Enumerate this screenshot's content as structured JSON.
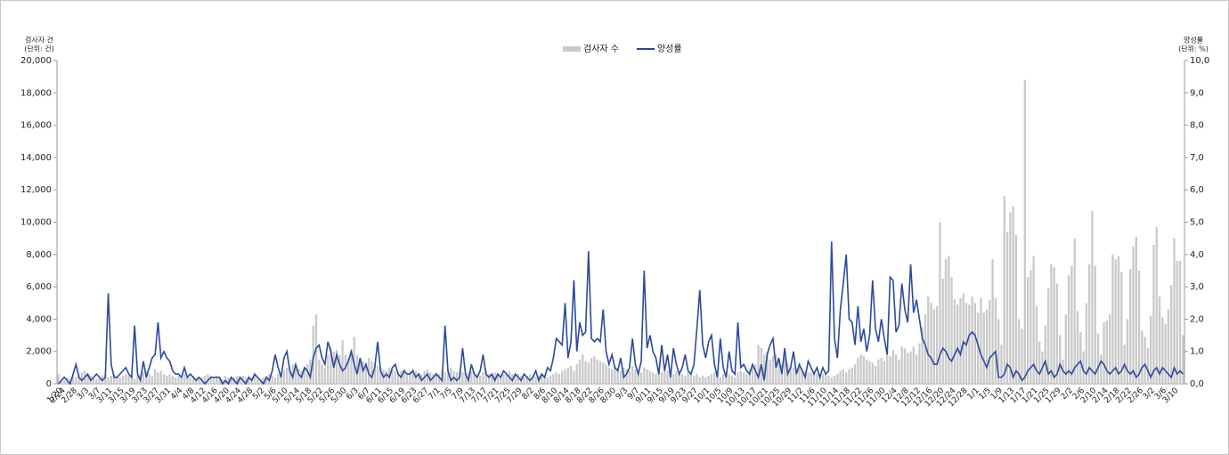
{
  "chart_data": {
    "type": "combo",
    "y_title": "검사자 건",
    "y_unit": "(단위: 건)",
    "y2_title": "양성률",
    "y2_unit": "(단위: %)",
    "categories": [
      "1/20",
      "2/24",
      null,
      null,
      null,
      "2/28",
      null,
      null,
      null,
      "3/3",
      null,
      null,
      null,
      "3/7",
      null,
      null,
      null,
      "3/11",
      null,
      null,
      null,
      "3/15",
      null,
      null,
      null,
      "3/19",
      null,
      null,
      null,
      "3/23",
      null,
      null,
      null,
      "3/27",
      null,
      null,
      null,
      "3/31",
      null,
      null,
      null,
      "4/4",
      null,
      null,
      null,
      "4/8",
      null,
      null,
      null,
      "4/12",
      null,
      null,
      null,
      "4/16",
      null,
      null,
      null,
      "4/20",
      null,
      null,
      null,
      "4/24",
      null,
      null,
      null,
      "4/28",
      null,
      null,
      null,
      "5/2",
      null,
      null,
      null,
      "5/6",
      null,
      null,
      null,
      "5/10",
      null,
      null,
      null,
      "5/14",
      null,
      null,
      null,
      "5/18",
      null,
      null,
      null,
      "5/22",
      null,
      null,
      null,
      "5/26",
      null,
      null,
      null,
      "5/30",
      null,
      null,
      null,
      "6/3",
      null,
      null,
      null,
      "6/7",
      null,
      null,
      null,
      "6/11",
      null,
      null,
      null,
      "6/15",
      null,
      null,
      null,
      "6/19",
      null,
      null,
      null,
      "6/23",
      null,
      null,
      null,
      "6/27",
      null,
      null,
      null,
      "7/1",
      null,
      null,
      null,
      "7/5",
      null,
      null,
      null,
      "7/9",
      null,
      null,
      null,
      "7/13",
      null,
      null,
      null,
      "7/17",
      null,
      null,
      null,
      "7/21",
      null,
      null,
      null,
      "7/25",
      null,
      null,
      null,
      "7/29",
      null,
      null,
      null,
      "8/2",
      null,
      null,
      null,
      "8/6",
      null,
      null,
      null,
      "8/10",
      null,
      null,
      null,
      "8/14",
      null,
      null,
      null,
      "8/18",
      null,
      null,
      null,
      "8/22",
      null,
      null,
      null,
      "8/26",
      null,
      null,
      null,
      "8/30",
      null,
      null,
      null,
      "9/3",
      null,
      null,
      null,
      "9/7",
      null,
      null,
      null,
      "9/11",
      null,
      null,
      null,
      "9/15",
      null,
      null,
      null,
      "9/19",
      null,
      null,
      null,
      "9/23",
      null,
      null,
      null,
      "9/27",
      null,
      null,
      null,
      "10/1",
      null,
      null,
      null,
      "10/5",
      null,
      null,
      null,
      "10/9",
      null,
      null,
      null,
      "10/13",
      null,
      null,
      null,
      "10/17",
      null,
      null,
      null,
      "10/21",
      null,
      null,
      null,
      "10/25",
      null,
      null,
      null,
      "10/29",
      null,
      null,
      null,
      "11/2",
      null,
      null,
      null,
      "11/6",
      null,
      null,
      null,
      "11/10",
      null,
      null,
      null,
      "11/14",
      null,
      null,
      null,
      "11/18",
      null,
      null,
      null,
      "11/22",
      null,
      null,
      null,
      "11/26",
      null,
      null,
      null,
      "11/30",
      null,
      null,
      null,
      "12/4",
      null,
      null,
      null,
      "12/8",
      null,
      null,
      null,
      "12/12",
      null,
      null,
      null,
      "12/16",
      null,
      null,
      null,
      "12/20",
      null,
      null,
      null,
      "12/24",
      null,
      null,
      null,
      "12/28",
      null,
      null,
      null,
      "1/1",
      null,
      null,
      null,
      "1/5",
      null,
      null,
      null,
      "1/9",
      null,
      null,
      null,
      "1/13",
      null,
      null,
      null,
      "1/17",
      null,
      null,
      null,
      "1/21",
      null,
      null,
      null,
      "1/25",
      null,
      null,
      null,
      "1/29",
      null,
      null,
      null,
      "2/2",
      null,
      null,
      null,
      "2/6",
      null,
      null,
      null,
      "2/10",
      null,
      null,
      null,
      "2/14",
      null,
      null,
      null,
      "2/18",
      null,
      null,
      null,
      "2/22",
      null,
      null,
      null,
      "2/26",
      null,
      null,
      null,
      "3/2",
      null,
      null,
      null,
      "3/6",
      null,
      null,
      null,
      "3/10",
      null,
      null,
      null
    ],
    "series": [
      {
        "name": "검사자 수",
        "type": "bar",
        "color": "#c9c9c9",
        "values": [
          600,
          300,
          200,
          400,
          300,
          500,
          400,
          600,
          700,
          800,
          600,
          500,
          400,
          300,
          400,
          500,
          600,
          400,
          500,
          600,
          500,
          400,
          500,
          600,
          500,
          400,
          300,
          500,
          600,
          700,
          800,
          600,
          500,
          900,
          700,
          800,
          600,
          500,
          600,
          500,
          400,
          500,
          400,
          600,
          500,
          400,
          500,
          400,
          300,
          400,
          500,
          600,
          500,
          400,
          500,
          400,
          300,
          500,
          400,
          300,
          400,
          500,
          400,
          500,
          400,
          300,
          400,
          500,
          400,
          300,
          400,
          500,
          600,
          500,
          400,
          600,
          700,
          800,
          1000,
          900,
          1200,
          1100,
          900,
          800,
          1000,
          1200,
          1500,
          3600,
          4300,
          1500,
          1200,
          1000,
          1800,
          2300,
          2000,
          2100,
          1800,
          2700,
          1800,
          1600,
          2100,
          2900,
          1800,
          1500,
          1400,
          1300,
          1600,
          1400,
          1200,
          1100,
          1000,
          900,
          800,
          1000,
          900,
          800,
          700,
          800,
          900,
          700,
          800,
          900,
          800,
          700,
          600,
          800,
          900,
          700,
          600,
          700,
          600,
          800,
          700,
          900,
          1000,
          800,
          700,
          800,
          700,
          600,
          700,
          800,
          700,
          600,
          500,
          700,
          800,
          600,
          500,
          700,
          600,
          500,
          600,
          700,
          800,
          600,
          500,
          600,
          500,
          400,
          500,
          600,
          500,
          400,
          500,
          600,
          500,
          400,
          500,
          600,
          700,
          600,
          800,
          900,
          1000,
          1100,
          800,
          1200,
          1500,
          1800,
          1400,
          1300,
          1600,
          1700,
          1500,
          1400,
          1300,
          1200,
          1000,
          900,
          1100,
          1000,
          800,
          1000,
          900,
          800,
          1100,
          900,
          800,
          700,
          1000,
          900,
          800,
          700,
          600,
          800,
          700,
          900,
          800,
          700,
          600,
          800,
          700,
          600,
          500,
          700,
          600,
          500,
          600,
          400,
          500,
          400,
          500,
          600,
          700,
          500,
          400,
          600,
          500,
          600,
          500,
          400,
          700,
          800,
          700,
          600,
          900,
          1000,
          1200,
          2400,
          2200,
          1800,
          2000,
          1500,
          1700,
          1800,
          1500,
          1200,
          1600,
          1300,
          1100,
          1000,
          900,
          1100,
          900,
          800,
          700,
          700,
          800,
          600,
          500,
          600,
          700,
          500,
          400,
          500,
          600,
          800,
          900,
          700,
          900,
          1000,
          1200,
          1600,
          1800,
          1700,
          1500,
          1400,
          1300,
          1100,
          1500,
          1600,
          1400,
          1800,
          1700,
          2100,
          1800,
          1500,
          2300,
          2200,
          1900,
          2000,
          2300,
          1800,
          2500,
          3500,
          4300,
          5400,
          5000,
          4600,
          4800,
          10000,
          6500,
          7700,
          7900,
          6600,
          5200,
          4900,
          5300,
          5600,
          5000,
          4900,
          5400,
          5000,
          4400,
          5300,
          4400,
          4600,
          5200,
          7700,
          5300,
          4000,
          2400,
          11600,
          9400,
          10600,
          11000,
          9200,
          4000,
          3400,
          18800,
          6600,
          7000,
          7900,
          4800,
          2600,
          2000,
          3600,
          5900,
          7400,
          7200,
          6200,
          3000,
          1500,
          4300,
          6700,
          7300,
          9000,
          4500,
          3200,
          2000,
          5000,
          7400,
          10700,
          7300,
          3100,
          1800,
          3800,
          3900,
          4300,
          8000,
          7700,
          7900,
          6900,
          2400,
          4000,
          7100,
          8500,
          9100,
          7000,
          3300,
          2900,
          2200,
          4200,
          8600,
          9700,
          5400,
          4100,
          3700,
          4600,
          6100,
          9000,
          7600,
          7600,
          3000
        ]
      },
      {
        "name": "양성률",
        "type": "line",
        "axis": "y2",
        "color": "#2b4a9c",
        "values": [
          0.0,
          0.1,
          0.2,
          0.1,
          0.0,
          0.3,
          0.6,
          0.2,
          0.1,
          0.2,
          0.3,
          0.1,
          0.2,
          0.3,
          0.2,
          0.1,
          0.2,
          2.8,
          0.6,
          0.2,
          0.2,
          0.3,
          0.4,
          0.5,
          0.3,
          0.2,
          1.8,
          0.3,
          0.1,
          0.7,
          0.2,
          0.5,
          0.8,
          0.9,
          1.9,
          0.8,
          1.0,
          0.8,
          0.7,
          0.4,
          0.3,
          0.3,
          0.2,
          0.5,
          0.2,
          0.3,
          0.2,
          0.1,
          0.2,
          0.1,
          0.0,
          0.1,
          0.2,
          0.2,
          0.2,
          0.2,
          0.0,
          0.1,
          0.0,
          0.2,
          0.1,
          0.0,
          0.2,
          0.1,
          0.0,
          0.2,
          0.1,
          0.3,
          0.2,
          0.1,
          0.0,
          0.2,
          0.1,
          0.4,
          0.9,
          0.5,
          0.2,
          0.8,
          1.0,
          0.4,
          0.2,
          0.6,
          0.3,
          0.2,
          0.5,
          0.4,
          0.2,
          0.8,
          1.1,
          1.2,
          0.8,
          0.6,
          1.3,
          1.0,
          0.5,
          0.9,
          0.6,
          0.4,
          0.5,
          0.7,
          1.0,
          0.6,
          0.3,
          0.8,
          0.4,
          0.6,
          0.3,
          0.2,
          0.5,
          1.3,
          0.4,
          0.2,
          0.3,
          0.2,
          0.5,
          0.6,
          0.3,
          0.2,
          0.4,
          0.3,
          0.3,
          0.4,
          0.2,
          0.3,
          0.1,
          0.2,
          0.3,
          0.1,
          0.2,
          0.3,
          0.2,
          0.1,
          1.8,
          0.4,
          0.1,
          0.2,
          0.1,
          0.2,
          1.1,
          0.3,
          0.1,
          0.6,
          0.3,
          0.2,
          0.4,
          0.9,
          0.3,
          0.2,
          0.3,
          0.1,
          0.3,
          0.2,
          0.4,
          0.3,
          0.2,
          0.1,
          0.3,
          0.2,
          0.1,
          0.3,
          0.2,
          0.1,
          0.2,
          0.4,
          0.1,
          0.3,
          0.2,
          0.5,
          0.4,
          0.8,
          1.4,
          1.3,
          1.2,
          2.5,
          0.8,
          1.3,
          3.2,
          1.0,
          1.9,
          1.5,
          1.6,
          4.1,
          1.4,
          1.3,
          1.4,
          1.3,
          2.3,
          1.0,
          0.6,
          0.9,
          0.5,
          0.4,
          0.8,
          0.2,
          0.3,
          0.5,
          1.4,
          0.6,
          0.3,
          0.7,
          3.5,
          1.1,
          1.5,
          1.0,
          0.8,
          0.3,
          1.2,
          0.4,
          0.9,
          0.2,
          1.1,
          0.6,
          0.3,
          0.5,
          0.9,
          0.4,
          0.3,
          0.6,
          1.7,
          2.9,
          1.2,
          0.8,
          1.3,
          1.5,
          0.6,
          0.2,
          1.4,
          0.5,
          0.2,
          1.0,
          0.4,
          0.3,
          1.9,
          0.5,
          0.6,
          0.4,
          0.3,
          0.6,
          0.4,
          0.2,
          0.6,
          0.1,
          0.9,
          1.2,
          1.4,
          0.5,
          0.8,
          0.3,
          1.1,
          0.3,
          0.5,
          1.0,
          0.3,
          0.6,
          0.4,
          0.2,
          0.7,
          0.5,
          0.3,
          0.5,
          0.2,
          0.5,
          0.3,
          0.4,
          4.4,
          1.4,
          0.8,
          2.3,
          3.1,
          4.0,
          2.0,
          1.9,
          1.2,
          2.4,
          1.3,
          1.7,
          1.0,
          1.5,
          3.2,
          1.7,
          1.3,
          2.0,
          1.4,
          0.9,
          3.3,
          3.2,
          1.6,
          1.8,
          3.1,
          2.3,
          1.9,
          3.7,
          2.2,
          2.6,
          2.0,
          1.4,
          1.2,
          0.9,
          0.8,
          0.6,
          0.6,
          0.9,
          1.1,
          1.0,
          0.8,
          0.7,
          0.9,
          1.1,
          0.9,
          1.3,
          1.2,
          1.5,
          1.6,
          1.5,
          1.2,
          0.9,
          0.7,
          0.5,
          0.8,
          0.9,
          1.0,
          0.2,
          0.2,
          0.3,
          0.6,
          0.5,
          0.2,
          0.4,
          0.3,
          0.1,
          0.2,
          0.4,
          0.5,
          0.6,
          0.4,
          0.3,
          0.5,
          0.7,
          0.3,
          0.4,
          0.2,
          0.3,
          0.6,
          0.4,
          0.3,
          0.4,
          0.3,
          0.5,
          0.6,
          0.7,
          0.4,
          0.3,
          0.5,
          0.4,
          0.3,
          0.5,
          0.7,
          0.6,
          0.4,
          0.3,
          0.4,
          0.5,
          0.3,
          0.4,
          0.6,
          0.4,
          0.3,
          0.4,
          0.2,
          0.3,
          0.5,
          0.6,
          0.4,
          0.2,
          0.4,
          0.5,
          0.3,
          0.5,
          0.4,
          0.3,
          0.2,
          0.5,
          0.3,
          0.4,
          0.3
        ]
      }
    ],
    "ylim": [
      0,
      20000
    ],
    "yticks": [
      0,
      {
        "value": 2000,
        "label": "2,000"
      },
      {
        "value": 4000,
        "label": "4,000"
      },
      {
        "value": 6000,
        "label": "6,000"
      },
      {
        "value": 8000,
        "label": "8,000"
      },
      {
        "value": 10000,
        "label": "10,000"
      },
      {
        "value": 12000,
        "label": "12,000"
      },
      {
        "value": 14000,
        "label": "14,000"
      },
      {
        "value": 16000,
        "label": "16,000"
      },
      {
        "value": 18000,
        "label": "18,000"
      },
      {
        "value": 20000,
        "label": "20,000"
      }
    ],
    "y2lim": [
      0,
      10
    ],
    "y2ticks": [
      {
        "value": 0,
        "label": "0,0"
      },
      {
        "value": 1,
        "label": "1,0"
      },
      {
        "value": 2,
        "label": "2,0"
      },
      {
        "value": 3,
        "label": "3,0"
      },
      {
        "value": 4,
        "label": "4,0"
      },
      {
        "value": 5,
        "label": "5,0"
      },
      {
        "value": 6,
        "label": "6,0"
      },
      {
        "value": 7,
        "label": "7,0"
      },
      {
        "value": 8,
        "label": "8,0"
      },
      {
        "value": 9,
        "label": "9,0"
      },
      {
        "value": 10,
        "label": "10,0"
      }
    ],
    "grid": false,
    "legend": "top"
  }
}
